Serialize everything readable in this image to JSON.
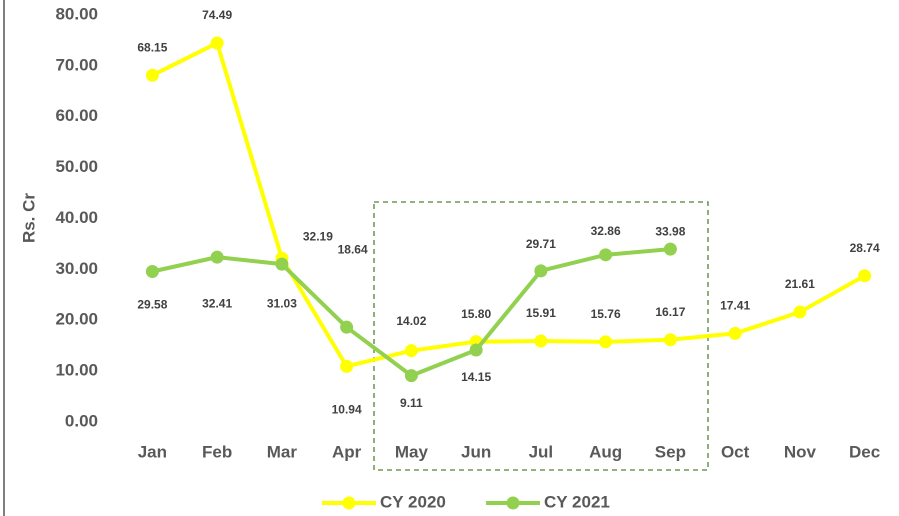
{
  "chart_data": {
    "type": "line",
    "y_label": "Rs. Cr",
    "categories": [
      "Jan",
      "Feb",
      "Mar",
      "Apr",
      "May",
      "Jun",
      "Jul",
      "Aug",
      "Sep",
      "Oct",
      "Nov",
      "Dec"
    ],
    "series": [
      {
        "name": "CY 2020",
        "color": "#ffff00",
        "values": [
          68.15,
          74.49,
          32.19,
          10.94,
          14.02,
          15.8,
          15.91,
          15.76,
          16.17,
          17.41,
          21.61,
          28.74
        ],
        "value_labels": [
          "68.15",
          "74.49",
          "32.19",
          "10.94",
          "14.02",
          "15.80",
          "15.91",
          "15.76",
          "16.17",
          "17.41",
          "21.61",
          "28.74"
        ]
      },
      {
        "name": "CY 2021",
        "color": "#92d050",
        "values": [
          29.58,
          32.41,
          31.03,
          18.64,
          9.11,
          14.15,
          29.71,
          32.86,
          33.98,
          null,
          null,
          null
        ],
        "value_labels": [
          "29.58",
          "32.41",
          "31.03",
          "18.64",
          "9.11",
          "14.15",
          "29.71",
          "32.86",
          "33.98",
          null,
          null,
          null
        ]
      }
    ],
    "ylim": [
      0,
      80
    ],
    "yticks": [
      {
        "value": 0,
        "label": "0.00"
      },
      {
        "value": 10,
        "label": "10.00"
      },
      {
        "value": 20,
        "label": "20.00"
      },
      {
        "value": 30,
        "label": "30.00"
      },
      {
        "value": 40,
        "label": "40.00"
      },
      {
        "value": 50,
        "label": "50.00"
      },
      {
        "value": 60,
        "label": "60.00"
      },
      {
        "value": 70,
        "label": "70.00"
      },
      {
        "value": 80,
        "label": "80.00"
      }
    ],
    "grid": false,
    "legend": "bottom"
  }
}
